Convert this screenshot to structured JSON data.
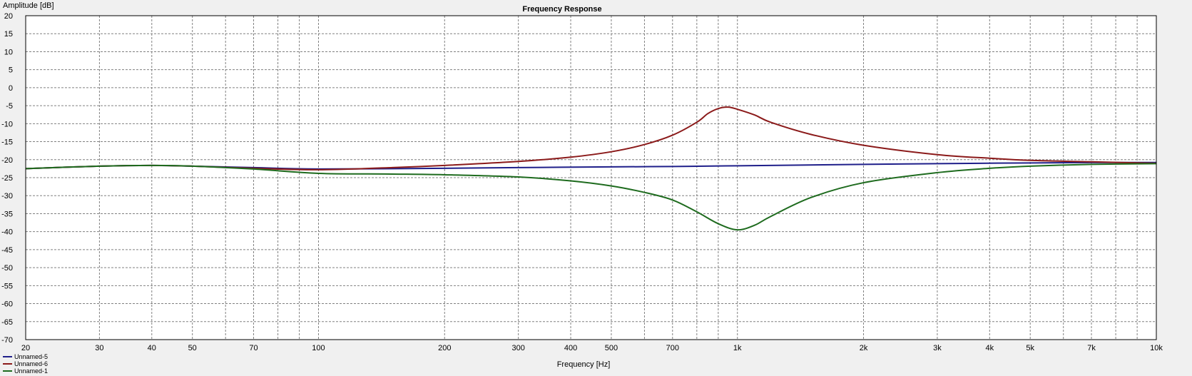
{
  "chart_data": {
    "type": "line",
    "title": "Frequency Response",
    "xlabel": "Frequency [Hz]",
    "ylabel": "Amplitude [dB]",
    "xscale": "log",
    "xlim": [
      20,
      10000
    ],
    "ylim": [
      -70,
      20
    ],
    "grid": true,
    "legend_position": "bottom-left",
    "x_tick_labels": [
      {
        "value": 20,
        "label": "20"
      },
      {
        "value": 30,
        "label": "30"
      },
      {
        "value": 40,
        "label": "40"
      },
      {
        "value": 50,
        "label": "50"
      },
      {
        "value": 70,
        "label": "70"
      },
      {
        "value": 100,
        "label": "100"
      },
      {
        "value": 200,
        "label": "200"
      },
      {
        "value": 300,
        "label": "300"
      },
      {
        "value": 400,
        "label": "400"
      },
      {
        "value": 500,
        "label": "500"
      },
      {
        "value": 700,
        "label": "700"
      },
      {
        "value": 1000,
        "label": "1k"
      },
      {
        "value": 2000,
        "label": "2k"
      },
      {
        "value": 3000,
        "label": "3k"
      },
      {
        "value": 4000,
        "label": "4k"
      },
      {
        "value": 5000,
        "label": "5k"
      },
      {
        "value": 7000,
        "label": "7k"
      },
      {
        "value": 10000,
        "label": "10k"
      }
    ],
    "y_ticks": [
      20,
      15,
      10,
      5,
      0,
      -5,
      -10,
      -15,
      -20,
      -25,
      -30,
      -35,
      -40,
      -45,
      -50,
      -55,
      -60,
      -65,
      -70
    ],
    "series": [
      {
        "name": "Unnamed-5",
        "color": "#1f1f8a",
        "x": [
          20,
          30,
          40,
          50,
          70,
          100,
          200,
          300,
          500,
          700,
          1000,
          2000,
          3000,
          5000,
          7000,
          10000
        ],
        "y": [
          -22.5,
          -21.8,
          -21.6,
          -21.8,
          -22.2,
          -22.6,
          -22.4,
          -22.2,
          -22.0,
          -21.9,
          -21.7,
          -21.3,
          -21.1,
          -20.9,
          -20.8,
          -20.8
        ]
      },
      {
        "name": "Unnamed-6",
        "color": "#8b1a1a",
        "x": [
          20,
          30,
          40,
          50,
          70,
          100,
          150,
          200,
          300,
          400,
          500,
          600,
          700,
          800,
          850,
          900,
          950,
          1000,
          1100,
          1200,
          1500,
          2000,
          3000,
          4000,
          5000,
          7000,
          10000
        ],
        "y": [
          -22.5,
          -21.8,
          -21.6,
          -21.8,
          -22.4,
          -22.8,
          -22.2,
          -21.6,
          -20.5,
          -19.3,
          -17.8,
          -15.8,
          -13.2,
          -9.6,
          -7.2,
          -5.8,
          -5.4,
          -6.0,
          -7.6,
          -9.6,
          -13.0,
          -16.0,
          -18.6,
          -19.6,
          -20.2,
          -20.6,
          -21.0
        ]
      },
      {
        "name": "Unnamed-1",
        "color": "#1e6b1e",
        "x": [
          20,
          30,
          40,
          50,
          70,
          100,
          150,
          200,
          300,
          400,
          500,
          600,
          700,
          800,
          900,
          1000,
          1100,
          1200,
          1500,
          2000,
          3000,
          4000,
          5000,
          7000,
          10000
        ],
        "y": [
          -22.5,
          -21.8,
          -21.6,
          -21.8,
          -22.6,
          -23.8,
          -24.0,
          -24.2,
          -24.8,
          -25.9,
          -27.3,
          -29.1,
          -31.2,
          -34.5,
          -37.8,
          -39.5,
          -38.2,
          -35.8,
          -30.5,
          -26.4,
          -23.6,
          -22.4,
          -21.8,
          -21.3,
          -21.1
        ]
      }
    ]
  }
}
